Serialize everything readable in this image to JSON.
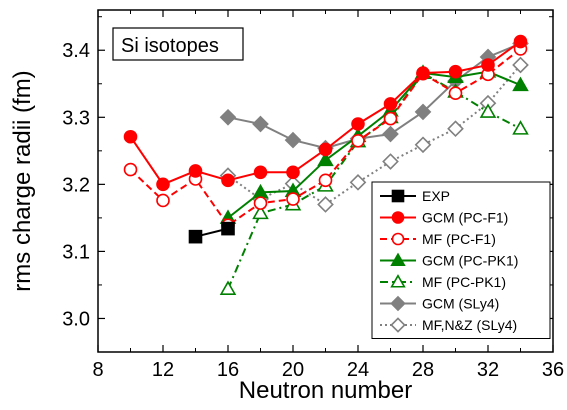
{
  "chart_data": {
    "type": "line",
    "panel_label": "Si isotopes",
    "xlabel": "Neutron number",
    "ylabel": "rms charge radii (fm)",
    "xlim": [
      8,
      36
    ],
    "ylim": [
      2.95,
      3.46
    ],
    "x_ticks": [
      8,
      12,
      16,
      20,
      24,
      28,
      32,
      36
    ],
    "x_tick_labels": [
      "8",
      "12",
      "16",
      "20",
      "24",
      "28",
      "32",
      "36"
    ],
    "y_ticks": [
      3.0,
      3.1,
      3.2,
      3.3,
      3.4
    ],
    "y_tick_labels": [
      "3.0",
      "3.1",
      "3.2",
      "3.3",
      "3.4"
    ],
    "legend_position": "bottom-right",
    "grid": false,
    "series": [
      {
        "name": "EXP",
        "x": [
          14,
          16
        ],
        "y": [
          3.122,
          3.134
        ],
        "color": "#000000",
        "line": "solid",
        "marker": "square",
        "filled": true
      },
      {
        "name": "GCM (PC-F1)",
        "x": [
          10,
          12,
          14,
          16,
          18,
          20,
          22,
          24,
          26,
          28,
          30,
          32,
          34
        ],
        "y": [
          3.271,
          3.2,
          3.22,
          3.206,
          3.218,
          3.218,
          3.252,
          3.29,
          3.32,
          3.366,
          3.368,
          3.378,
          3.413
        ],
        "color": "#ff0000",
        "line": "solid",
        "marker": "circle",
        "filled": true
      },
      {
        "name": "MF (PC-F1)",
        "x": [
          10,
          12,
          14,
          16,
          18,
          20,
          22,
          24,
          26,
          28,
          30,
          32,
          34
        ],
        "y": [
          3.222,
          3.176,
          3.208,
          3.139,
          3.172,
          3.178,
          3.206,
          3.265,
          3.298,
          3.365,
          3.336,
          3.364,
          3.402
        ],
        "color": "#ff0000",
        "line": "dashed",
        "marker": "circle",
        "filled": false
      },
      {
        "name": "GCM (PC-PK1)",
        "x": [
          16,
          18,
          20,
          22,
          24,
          26,
          28,
          30,
          32,
          34
        ],
        "y": [
          3.15,
          3.188,
          3.19,
          3.236,
          3.272,
          3.31,
          3.366,
          3.36,
          3.368,
          3.348
        ],
        "color": "#008000",
        "line": "solid",
        "marker": "triangle",
        "filled": true
      },
      {
        "name": "MF (PC-PK1)",
        "x": [
          16,
          18,
          20,
          22,
          24,
          26,
          28,
          30,
          32,
          34
        ],
        "y": [
          3.044,
          3.157,
          3.17,
          3.198,
          3.264,
          3.3,
          3.366,
          3.338,
          3.308,
          3.283
        ],
        "color": "#008000",
        "line": "dashdot",
        "marker": "triangle",
        "filled": false
      },
      {
        "name": "GCM (SLy4)",
        "x": [
          16,
          18,
          20,
          22,
          24,
          26,
          28,
          30,
          32,
          34
        ],
        "y": [
          3.3,
          3.29,
          3.266,
          3.254,
          3.268,
          3.275,
          3.308,
          3.354,
          3.39,
          3.41
        ],
        "color": "#808080",
        "line": "solid",
        "marker": "diamond",
        "filled": true
      },
      {
        "name": "MF,N&Z (SLy4)",
        "x": [
          16,
          18,
          20,
          22,
          24,
          26,
          28,
          30,
          32,
          34
        ],
        "y": [
          3.213,
          3.178,
          3.201,
          3.17,
          3.203,
          3.234,
          3.259,
          3.283,
          3.321,
          3.378
        ],
        "color": "#808080",
        "line": "dotted",
        "marker": "diamond",
        "filled": false
      }
    ]
  }
}
